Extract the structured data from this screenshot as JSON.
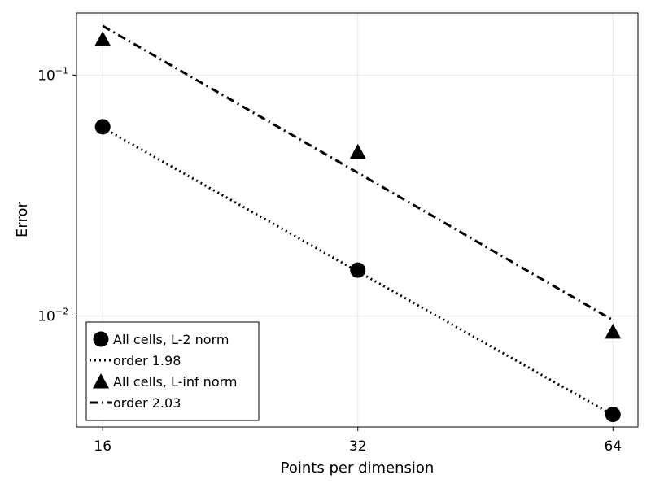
{
  "chart_data": {
    "type": "line",
    "xscale": "log2",
    "yscale": "log10",
    "xlabel": "Points per dimension",
    "ylabel": "Error",
    "xticks": [
      16,
      32,
      64
    ],
    "xtick_labels": [
      "16",
      "32",
      "64"
    ],
    "yticks": [
      0.1,
      0.01
    ],
    "ytick_labels": [
      {
        "base": "10",
        "exp": "−1"
      },
      {
        "base": "10",
        "exp": "−2"
      }
    ],
    "xlim": [
      14.9,
      68.5
    ],
    "ylim": [
      0.00346,
      0.181
    ],
    "grid": true,
    "legend_position": "bottom-left",
    "series": [
      {
        "name": "All cells, L-2 norm",
        "kind": "markers",
        "marker": "circle",
        "x": [
          16,
          32,
          64
        ],
        "y": [
          0.061,
          0.0155,
          0.0039
        ]
      },
      {
        "name": "order 1.98",
        "kind": "line",
        "dash": "dotted",
        "x": [
          16,
          32,
          64
        ],
        "y": [
          0.0605,
          0.0153,
          0.00388
        ]
      },
      {
        "name": "All cells, L-inf norm",
        "kind": "markers",
        "marker": "triangle",
        "x": [
          16,
          32,
          64
        ],
        "y": [
          0.141,
          0.048,
          0.0086
        ]
      },
      {
        "name": "order 2.03",
        "kind": "line",
        "dash": "dashdot",
        "x": [
          16,
          32,
          64
        ],
        "y": [
          0.16,
          0.0393,
          0.0096
        ]
      }
    ]
  }
}
